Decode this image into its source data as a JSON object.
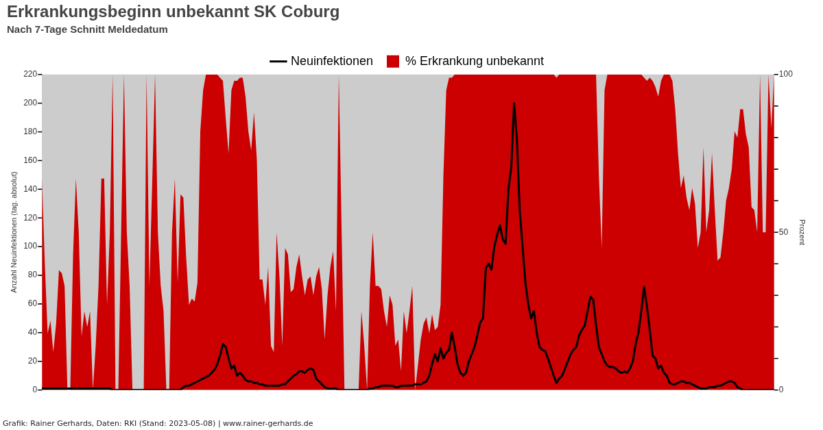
{
  "chart_data": {
    "type": "line",
    "title": "Erkrankungsbeginn unbekannt SK Coburg",
    "subtitle": "Nach 7-Tage Schnitt Meldedatum",
    "ylabel": "Anzahl Neuinfektionen (tag. absolut)",
    "y2label": "Prozent",
    "legend": "top",
    "categories": [
      null,
      null,
      null,
      null,
      null,
      null,
      null,
      null,
      null,
      null,
      null,
      null,
      null,
      null,
      null,
      null,
      null,
      null,
      null,
      null,
      null,
      null,
      null,
      null,
      null,
      null,
      null,
      null,
      null,
      null,
      null,
      null,
      null,
      null,
      null,
      null,
      null,
      null,
      null,
      null,
      null,
      null,
      null,
      null,
      null,
      null,
      null,
      null,
      null,
      null,
      null,
      null,
      null,
      null,
      null,
      null,
      null,
      null,
      null,
      null,
      null,
      null,
      null,
      null,
      null,
      null,
      null,
      null,
      null,
      null,
      null,
      null,
      null,
      null,
      null,
      null,
      null,
      null,
      null,
      null,
      null,
      null,
      null,
      null,
      null,
      null,
      null,
      null,
      null,
      null,
      null,
      null,
      null,
      null,
      null,
      null,
      null,
      null,
      null,
      null,
      null,
      null,
      null,
      null,
      null,
      null,
      null,
      null,
      null,
      null,
      null,
      null,
      null,
      null,
      null,
      null,
      null,
      null,
      null,
      null,
      null,
      null,
      null,
      null,
      null,
      null,
      null,
      null,
      null,
      null,
      null,
      null,
      null,
      null,
      null,
      null,
      null,
      null,
      null,
      null,
      null,
      null,
      null,
      null,
      null,
      null,
      null,
      null,
      null,
      null,
      null,
      null,
      null,
      null,
      null,
      null,
      null,
      null,
      null,
      null,
      null,
      null,
      null,
      null,
      null,
      null,
      null,
      null,
      null,
      null,
      null,
      null,
      null,
      null,
      null,
      null,
      null,
      null,
      null,
      null,
      null,
      null,
      null,
      null,
      null,
      null,
      null,
      null,
      null,
      null,
      null,
      null,
      null,
      null,
      null,
      null,
      null,
      null,
      null,
      null,
      null,
      null,
      null,
      null,
      null,
      null,
      null,
      null,
      null,
      null,
      null,
      null,
      null,
      null,
      null,
      null,
      null,
      null,
      null,
      null,
      null,
      null,
      null,
      null,
      null,
      null,
      null,
      null,
      null,
      null,
      null,
      null,
      null,
      null,
      null,
      null,
      null,
      null,
      null,
      null,
      null,
      null,
      null,
      null,
      null,
      null,
      null,
      null,
      null,
      null,
      null,
      null,
      null,
      null,
      null,
      null,
      null,
      null,
      null,
      null
    ],
    "series": [
      {
        "name": "Neuinfektionen",
        "type": "line",
        "color": "#000000",
        "values": [
          1,
          1,
          1,
          1,
          1,
          1,
          1,
          1,
          1,
          1,
          1,
          1,
          1,
          1,
          1,
          1,
          1,
          1,
          1,
          1,
          1,
          1,
          1,
          1,
          1,
          0,
          0,
          0,
          0,
          0,
          0,
          0,
          0,
          0,
          0,
          0,
          0,
          0,
          0,
          0,
          0,
          0,
          0,
          0,
          0,
          0,
          0,
          0,
          0,
          0,
          2,
          3,
          3,
          4,
          5,
          6,
          7,
          8,
          9,
          10,
          12,
          14,
          18,
          24,
          32,
          30,
          22,
          15,
          17,
          10,
          12,
          10,
          7,
          6,
          6,
          5,
          5,
          4,
          4,
          3,
          3,
          3,
          3,
          3,
          3,
          4,
          4,
          6,
          8,
          10,
          11,
          13,
          13,
          12,
          14,
          15,
          14,
          8,
          6,
          4,
          2,
          1,
          1,
          1,
          1,
          0,
          0,
          0,
          0,
          0,
          0,
          0,
          0,
          0,
          0,
          0,
          1,
          1,
          2,
          2,
          3,
          3,
          3,
          3,
          3,
          2,
          2,
          3,
          3,
          3,
          3,
          3,
          4,
          4,
          4,
          5,
          6,
          10,
          18,
          25,
          20,
          29,
          22,
          26,
          28,
          40,
          30,
          18,
          12,
          10,
          12,
          20,
          25,
          30,
          38,
          47,
          50,
          85,
          88,
          84,
          100,
          108,
          115,
          105,
          102,
          140,
          155,
          200,
          175,
          125,
          100,
          75,
          60,
          50,
          55,
          40,
          30,
          28,
          27,
          22,
          16,
          10,
          5,
          8,
          10,
          15,
          20,
          25,
          28,
          30,
          38,
          42,
          45,
          55,
          65,
          63,
          45,
          30,
          25,
          20,
          17,
          16,
          16,
          15,
          13,
          12,
          13,
          12,
          15,
          20,
          32,
          40,
          55,
          72,
          58,
          42,
          24,
          22,
          15,
          17,
          12,
          10,
          5,
          4,
          4,
          5,
          6,
          6,
          5,
          5,
          4,
          3,
          2,
          1,
          1,
          1,
          2,
          2,
          2,
          3,
          3,
          4,
          5,
          6,
          6,
          5,
          2,
          1,
          0,
          0,
          0,
          0,
          0,
          0,
          0,
          0,
          0,
          0,
          0,
          0
        ]
      },
      {
        "name": "% Erkrankung unbekannt",
        "type": "area",
        "axis": "y2",
        "color": "#cc0000",
        "values": [
          67,
          40,
          18,
          22,
          12,
          21,
          38,
          37,
          33,
          0,
          0,
          43,
          67,
          50,
          17,
          25,
          20,
          25,
          0,
          14,
          33,
          67,
          67,
          27,
          50,
          100,
          0,
          0,
          50,
          100,
          50,
          33,
          0,
          0,
          0,
          0,
          0,
          100,
          33,
          66,
          100,
          50,
          33,
          25,
          0,
          0,
          50,
          67,
          34,
          62,
          61,
          42,
          27,
          29,
          28,
          34,
          82,
          95,
          100,
          100,
          100,
          100,
          100,
          99,
          98,
          86,
          75,
          95,
          98,
          98,
          99,
          99,
          93,
          82,
          76,
          88,
          73,
          35,
          35,
          27,
          39,
          14,
          12,
          50,
          36,
          14,
          45,
          43,
          31,
          32,
          39,
          43,
          36,
          30,
          35,
          36,
          30,
          36,
          39,
          32,
          16,
          30,
          39,
          44,
          25,
          100,
          50,
          0,
          0,
          0,
          0,
          0,
          0,
          25,
          14,
          0,
          33,
          50,
          33,
          33,
          32,
          25,
          20,
          30,
          27,
          14,
          16,
          6,
          25,
          18,
          25,
          33,
          0,
          8,
          16,
          21,
          23,
          18,
          24,
          19,
          20,
          27,
          68,
          95,
          99,
          99,
          100,
          100,
          100,
          100,
          100,
          100,
          100,
          100,
          100,
          100,
          100,
          100,
          100,
          100,
          100,
          100,
          100,
          100,
          100,
          100,
          100,
          100,
          100,
          100,
          100,
          100,
          100,
          100,
          100,
          100,
          100,
          100,
          100,
          100,
          100,
          100,
          99,
          100,
          100,
          100,
          100,
          100,
          100,
          100,
          100,
          100,
          100,
          100,
          100,
          100,
          100,
          68,
          45,
          95,
          100,
          100,
          100,
          100,
          100,
          100,
          100,
          100,
          100,
          100,
          100,
          100,
          100,
          99,
          98,
          99,
          98,
          96,
          93,
          98,
          100,
          100,
          100,
          98,
          89,
          75,
          64,
          68,
          61,
          57,
          64,
          59,
          45,
          50,
          77,
          50,
          57,
          75,
          57,
          41,
          42,
          50,
          60,
          64,
          70,
          82,
          80,
          89,
          89,
          81,
          77,
          58,
          57,
          50,
          100,
          50,
          50,
          100,
          83,
          100
        ]
      }
    ],
    "ylim": [
      0,
      220
    ],
    "yticks": [
      0,
      20,
      40,
      60,
      80,
      100,
      120,
      140,
      160,
      180,
      200,
      220
    ],
    "y2lim": [
      0,
      100
    ],
    "y2ticks": [
      0,
      {
        "value": 10,
        "label": null
      },
      {
        "value": 20,
        "label": null
      },
      {
        "value": 30,
        "label": null
      },
      {
        "value": 40,
        "label": null
      },
      50,
      {
        "value": 60,
        "label": null
      },
      {
        "value": 70,
        "label": null
      },
      {
        "value": 80,
        "label": null
      },
      {
        "value": 90,
        "label": null
      },
      100
    ],
    "annotations": [
      "Grafik: Rainer Gerhards, Daten: RKI (Stand: 2023-05-08) | www.rainer-gerhards.de"
    ]
  }
}
